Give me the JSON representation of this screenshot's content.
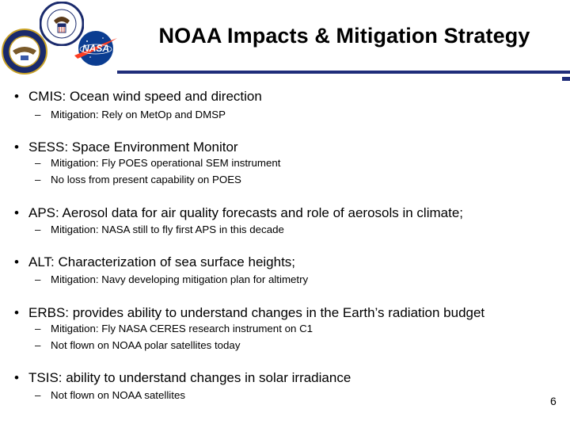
{
  "slide": {
    "title": "NOAA Impacts & Mitigation Strategy",
    "page_number": "6",
    "logo_text": {
      "nasa": "NASA"
    },
    "bullets": [
      {
        "text": "CMIS:  Ocean wind speed and direction",
        "subs": [
          "Mitigation: Rely on MetOp and DMSP"
        ]
      },
      {
        "text": "SESS: Space Environment Monitor",
        "subs": [
          "Mitigation: Fly POES operational SEM instrument",
          "No loss from present capability on POES"
        ]
      },
      {
        "text": "APS: Aerosol data for air quality forecasts and role of aerosols in climate;",
        "subs": [
          "Mitigation: NASA still to fly first APS in this decade"
        ]
      },
      {
        "text": "ALT: Characterization of sea surface heights;",
        "subs": [
          "Mitigation: Navy developing mitigation plan for altimetry"
        ]
      },
      {
        "text": "ERBS: provides ability to understand changes in the Earth’s radiation budget",
        "subs": [
          "Mitigation: Fly NASA CERES research instrument on C1",
          "Not flown on NOAA polar satellites today"
        ]
      },
      {
        "text": "TSIS: ability to understand changes in solar irradiance",
        "subs": [
          "Not flown on NOAA satellites"
        ]
      }
    ]
  },
  "colors": {
    "rule": "#1f2d7a",
    "nasa_blue": "#0b3d91",
    "nasa_red": "#fc3d21"
  }
}
